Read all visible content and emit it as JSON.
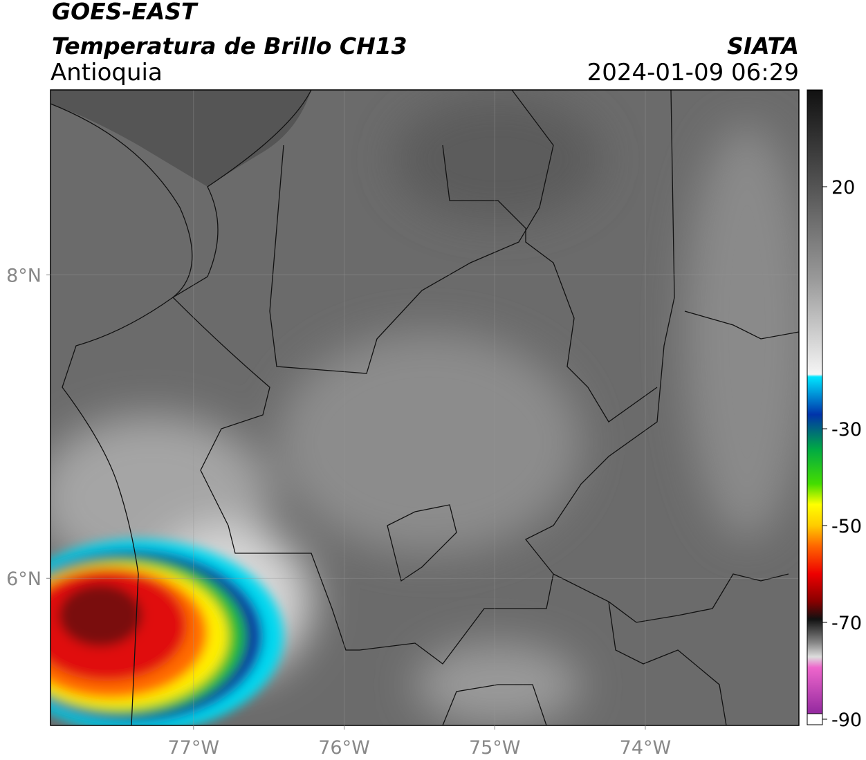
{
  "header": {
    "title": "GOES-EAST",
    "subtitle": "Temperatura de Brillo CH13",
    "source": "SIATA",
    "region": "Antioquia",
    "datetime": "2024-01-09 06:29"
  },
  "map": {
    "xlim": [
      -77.95,
      -72.98
    ],
    "ylim": [
      5.03,
      9.22
    ],
    "xticks": [
      {
        "value": -77,
        "label": "77°W"
      },
      {
        "value": -76,
        "label": "76°W"
      },
      {
        "value": -75,
        "label": "75°W"
      },
      {
        "value": -74,
        "label": "74°W"
      }
    ],
    "yticks": [
      {
        "value": 8,
        "label": "8°N"
      },
      {
        "value": 6,
        "label": "6°N"
      }
    ],
    "grid": true
  },
  "colorbar": {
    "lim": [
      -90,
      40
    ],
    "ticks": [
      20,
      -30,
      -50,
      -70,
      -90
    ]
  }
}
